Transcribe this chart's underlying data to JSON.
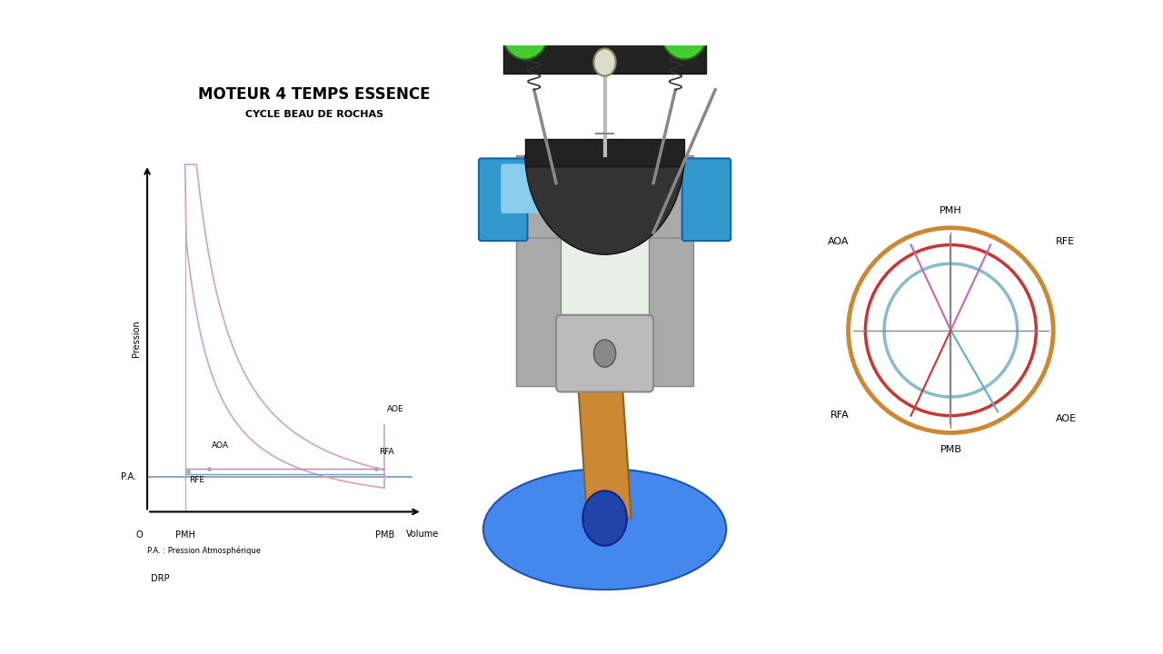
{
  "title": "MOTEUR 4 TEMPS ESSENCE",
  "subtitle": "CYCLE BEAU DE ROCHAS",
  "bg_color": "#ffffff",
  "bar_color": "#1a1a1a",
  "pv_labels": {
    "x_label": "Volume",
    "y_label": "Pression",
    "pa_label": "P.A.",
    "pa_note": "P.A. : Pression Atmosphérique",
    "pmh": "PMH",
    "pmb": "PMB",
    "aoa": "AOA",
    "aoe": "AOE",
    "rfa": "RFA",
    "rfe": "RFE",
    "o": "O"
  },
  "circle_labels": {
    "pmh": "PMH",
    "pmb": "PMB",
    "aoa": "AOA",
    "aoe": "AOE",
    "rfa": "RFA",
    "rfe": "RFE"
  },
  "line_color": "#d4a0c8",
  "line_color2": "#c080b0",
  "pa_line_color": "#7799bb",
  "footer": "DRP",
  "circle_colors": {
    "outer": "#cc8833",
    "mid": "#cc3333",
    "inner": "#88bbcc"
  },
  "spoke_colors": {
    "PMH": "#888888",
    "PMB": "#888888",
    "AOA": "#cc66aa",
    "RFE": "#cc66aa",
    "RFA": "#66aacc",
    "AOE": "#cc3333"
  }
}
